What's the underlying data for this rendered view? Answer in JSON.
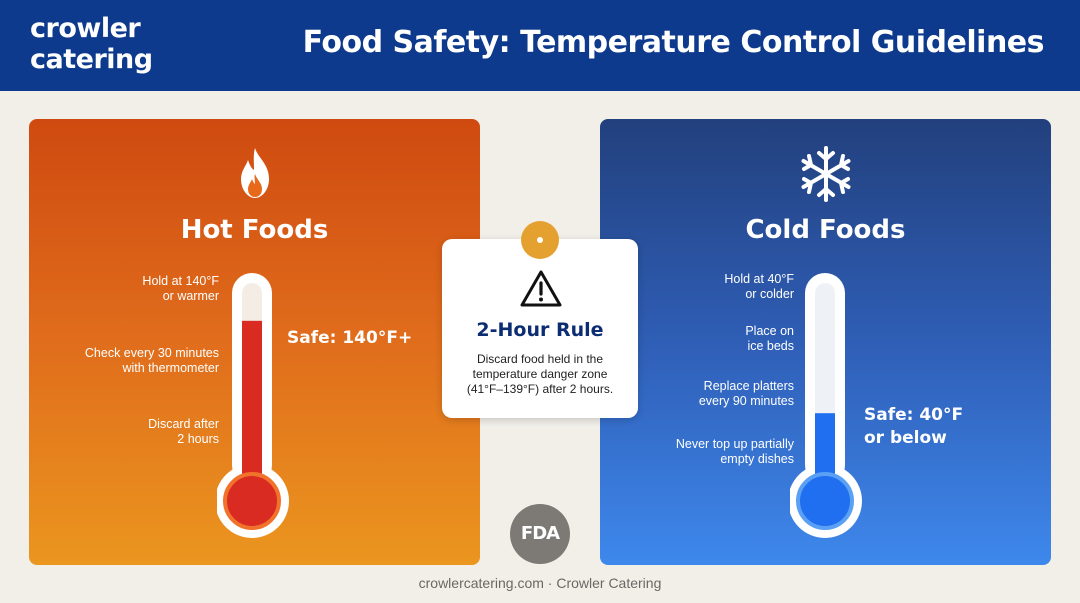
{
  "header": {
    "logo_line1": "crowler",
    "logo_line2": "catering",
    "title": "Food Safety: Temperature Control Guidelines"
  },
  "hot": {
    "icon": "flame-icon",
    "title": "Hot Foods",
    "notes": [
      {
        "line1": "Hold at 140°F",
        "line2": "or warmer"
      },
      {
        "line1": "Check every 30 minutes",
        "line2": "with thermometer"
      },
      {
        "line1": "Discard after",
        "line2": "2 hours"
      }
    ],
    "safe_label": "Safe: 140°F+",
    "fill_fraction": 0.82,
    "color": "#d92b22"
  },
  "cold": {
    "icon": "snowflake-icon",
    "title": "Cold Foods",
    "notes": [
      {
        "line1": "Hold at 40°F",
        "line2": "or colder"
      },
      {
        "line1": "Place on",
        "line2": "ice beds"
      },
      {
        "line1": "Replace platters",
        "line2": "every 90 minutes"
      },
      {
        "line1": "Never top up partially",
        "line2": "empty dishes"
      }
    ],
    "safe_line1": "Safe: 40°F",
    "safe_line2": "or below",
    "fill_fraction": 0.38,
    "color": "#1f6ff0"
  },
  "rule": {
    "icon": "warning-triangle-icon",
    "title": "2-Hour Rule",
    "line1": "Discard food held in the",
    "line2": "temperature danger zone",
    "line3": "(41°F–139°F) after 2 hours."
  },
  "badge": {
    "text": "FDA"
  },
  "footer": {
    "text": "crowlercatering.com · Crowler Catering"
  }
}
